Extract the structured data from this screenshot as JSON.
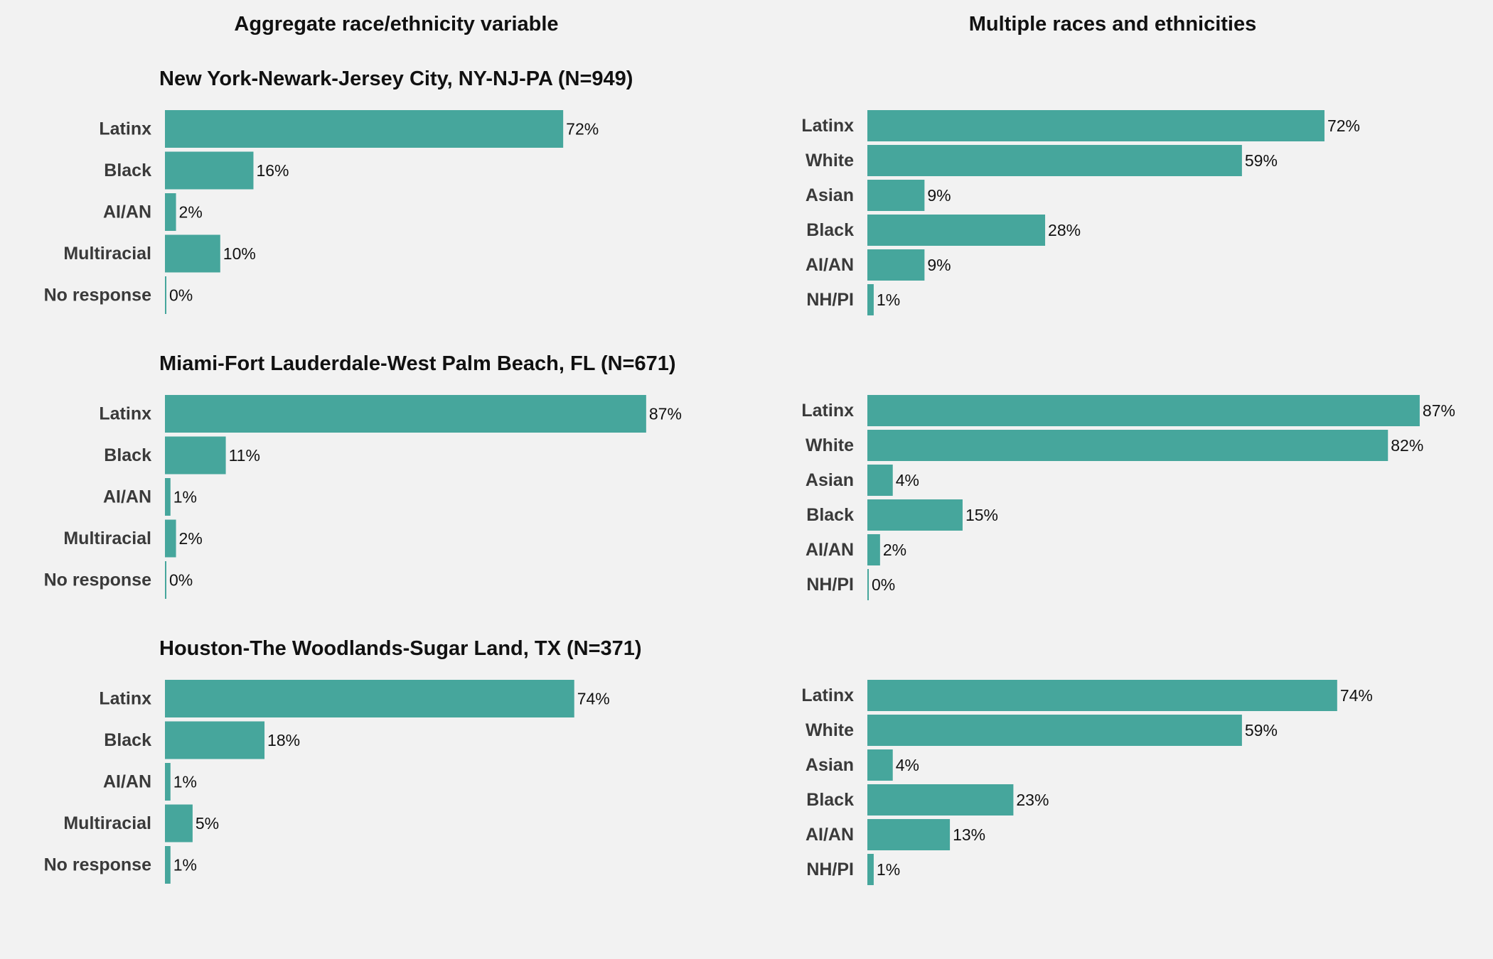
{
  "colors": {
    "bar": "#46a69c",
    "background": "#f2f2f2"
  },
  "column_titles": {
    "left": "Aggregate race/ethnicity variable",
    "right": "Multiple races and ethnicities"
  },
  "chart_data": [
    {
      "type": "bar",
      "orientation": "horizontal",
      "title": "New York-Newark-Jersey City, NY-NJ-PA (N=949)",
      "categories": [
        "Latinx",
        "Black",
        "AI/AN",
        "Multiracial",
        "No response"
      ],
      "values": [
        72,
        16,
        2,
        10,
        0
      ],
      "labels": [
        "72%",
        "16%",
        "2%",
        "10%",
        "0%"
      ],
      "xlim": [
        0,
        100
      ],
      "grid": false
    },
    {
      "type": "bar",
      "orientation": "horizontal",
      "title": "",
      "categories": [
        "Latinx",
        "White",
        "Asian",
        "Black",
        "AI/AN",
        "NH/PI"
      ],
      "values": [
        72,
        59,
        9,
        28,
        9,
        1
      ],
      "labels": [
        "72%",
        "59%",
        "9%",
        "28%",
        "9%",
        "1%"
      ],
      "xlim": [
        0,
        100
      ],
      "grid": false
    },
    {
      "type": "bar",
      "orientation": "horizontal",
      "title": "Miami-Fort Lauderdale-West Palm Beach, FL (N=671)",
      "categories": [
        "Latinx",
        "Black",
        "AI/AN",
        "Multiracial",
        "No response"
      ],
      "values": [
        87,
        11,
        1,
        2,
        0
      ],
      "labels": [
        "87%",
        "11%",
        "1%",
        "2%",
        "0%"
      ],
      "xlim": [
        0,
        100
      ],
      "grid": false
    },
    {
      "type": "bar",
      "orientation": "horizontal",
      "title": "",
      "categories": [
        "Latinx",
        "White",
        "Asian",
        "Black",
        "AI/AN",
        "NH/PI"
      ],
      "values": [
        87,
        82,
        4,
        15,
        2,
        0
      ],
      "labels": [
        "87%",
        "82%",
        "4%",
        "15%",
        "2%",
        "0%"
      ],
      "xlim": [
        0,
        100
      ],
      "grid": false
    },
    {
      "type": "bar",
      "orientation": "horizontal",
      "title": "Houston-The Woodlands-Sugar Land, TX (N=371)",
      "categories": [
        "Latinx",
        "Black",
        "AI/AN",
        "Multiracial",
        "No response"
      ],
      "values": [
        74,
        18,
        1,
        5,
        1
      ],
      "labels": [
        "74%",
        "18%",
        "1%",
        "5%",
        "1%"
      ],
      "xlim": [
        0,
        100
      ],
      "grid": false
    },
    {
      "type": "bar",
      "orientation": "horizontal",
      "title": "",
      "categories": [
        "Latinx",
        "White",
        "Asian",
        "Black",
        "AI/AN",
        "NH/PI"
      ],
      "values": [
        74,
        59,
        4,
        23,
        13,
        1
      ],
      "labels": [
        "74%",
        "59%",
        "4%",
        "23%",
        "13%",
        "1%"
      ],
      "xlim": [
        0,
        100
      ],
      "grid": false
    }
  ]
}
